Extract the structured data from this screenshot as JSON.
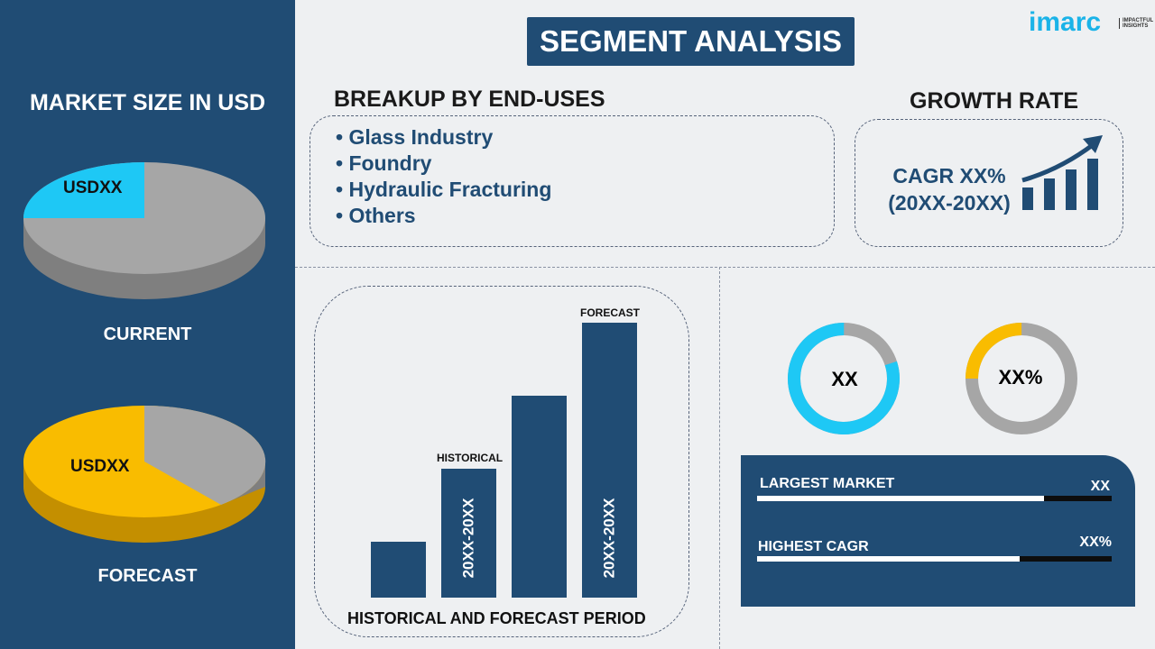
{
  "title": "SEGMENT ANALYSIS",
  "logo": {
    "text": "imarc",
    "tagline": "IMPACTFUL INSIGHTS"
  },
  "left": {
    "heading": "MARKET SIZE IN USD",
    "current": {
      "label": "CURRENT",
      "value": "USDXX",
      "highlight_share": 0.25,
      "color": "#1ec8f5"
    },
    "forecast": {
      "label": "FORECAST",
      "value": "USDXX",
      "highlight_share": 0.6,
      "color": "#f9bc00"
    }
  },
  "breakup": {
    "heading": "BREAKUP BY END-USES",
    "items": [
      "Glass Industry",
      "Foundry",
      "Hydraulic Fracturing",
      "Others"
    ]
  },
  "growth": {
    "heading": "GROWTH RATE",
    "cagr": "CAGR XX%",
    "period": "(20XX-20XX)"
  },
  "chart_data": {
    "type": "bar",
    "title": "",
    "xlabel": "HISTORICAL AND FORECAST PERIOD",
    "relative_values": [
      1,
      2.3,
      3.6,
      4.9
    ],
    "historical_label": "HISTORICAL",
    "forecast_label": "FORECAST",
    "historical_period": "20XX-20XX",
    "forecast_period": "20XX-20XX"
  },
  "donuts": [
    {
      "text": "XX",
      "share": 0.8,
      "color": "#1ec8f5"
    },
    {
      "text": "XX%",
      "share": 0.25,
      "color": "#f9bc00"
    }
  ],
  "stats": [
    {
      "label": "LARGEST MARKET",
      "value": "XX",
      "fill": 0.81
    },
    {
      "label": "HIGHEST CAGR",
      "value": "XX%",
      "fill": 0.74
    }
  ],
  "colors": {
    "navy": "#204c74",
    "gray": "#a6a6a6"
  }
}
